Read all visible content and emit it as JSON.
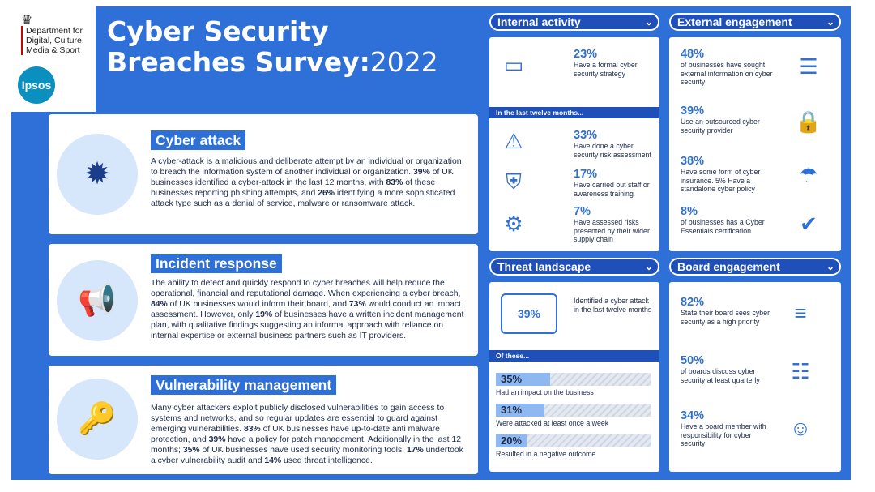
{
  "header": {
    "dept_lines": [
      "Department for",
      "Digital, Culture,",
      "Media & Sport"
    ],
    "ipsos": "Ipsos",
    "title_line1": "Cyber Security",
    "title_line2": "Breaches Survey:",
    "title_year": "2022"
  },
  "sections": [
    {
      "title": "Cyber attack",
      "icon": "bug-icon",
      "runs": [
        [
          "A cyber-attack is a malicious and deliberate attempt by an individual or organization to breach the information system of another individual or organization. ",
          0
        ],
        [
          "39%",
          1
        ],
        [
          " of UK businesses identified a cyber-attack in the last 12 months, with ",
          0
        ],
        [
          "83%",
          1
        ],
        [
          " of these businesses reporting phishing attempts, and ",
          0
        ],
        [
          "26%",
          1
        ],
        [
          " identifying a more sophisticated attack type such as a denial of service, malware or ransomware attack.",
          0
        ]
      ]
    },
    {
      "title": "Incident response",
      "icon": "megaphone-icon",
      "runs": [
        [
          "The ability to detect and quickly respond to cyber breaches will help reduce the operational, financial and reputational damage. When experiencing a cyber breach, ",
          0
        ],
        [
          "84%",
          1
        ],
        [
          " of UK businesses would inform their board, and ",
          0
        ],
        [
          "73%",
          1
        ],
        [
          " would conduct an impact assessment. However, only ",
          0
        ],
        [
          "19%",
          1
        ],
        [
          " of businesses have a written incident management plan, with qualitative findings suggesting an informal approach with reliance on internal expertise or external business partners such as IT providers.",
          0
        ]
      ]
    },
    {
      "title": "Vulnerability management",
      "icon": "key-icon",
      "runs": [
        [
          "Many cyber attackers exploit publicly disclosed vulnerabilities to gain access to systems and networks, and so regular updates are essential to guard against emerging vulnerabilities. ",
          0
        ],
        [
          "83%",
          1
        ],
        [
          " of UK businesses have up-to-date anti malware protection, and ",
          0
        ],
        [
          "39%",
          1
        ],
        [
          " have a policy for patch management. Additionally in the last 12 months; ",
          0
        ],
        [
          "35%",
          1
        ],
        [
          " of UK businesses have used security monitoring tools, ",
          0
        ],
        [
          "17%",
          1
        ],
        [
          " undertook a cyber vulnerability audit and ",
          0
        ],
        [
          "14%",
          1
        ],
        [
          " used threat intelligence.",
          0
        ]
      ]
    }
  ],
  "internal": {
    "title": "Internal activity",
    "first": {
      "pct": "23%",
      "label": "Have a formal cyber security strategy"
    },
    "band": "In the last twelve months...",
    "items": [
      {
        "pct": "33%",
        "label": "Have done a cyber security risk assessment"
      },
      {
        "pct": "17%",
        "label": "Have carried out staff or awareness training"
      },
      {
        "pct": "7%",
        "label": "Have assessed risks presented by their wider supply chain"
      }
    ]
  },
  "threat": {
    "title": "Threat landscape",
    "center": "39%",
    "label": "Identified a cyber attack in the last twelve months",
    "band": "Of these...",
    "bars": [
      {
        "value": "35%",
        "fraction": 0.35,
        "label": "Had an impact on the business"
      },
      {
        "value": "31%",
        "fraction": 0.31,
        "label": "Were attacked at least once a week"
      },
      {
        "value": "20%",
        "fraction": 0.2,
        "label": "Resulted in a negative outcome"
      }
    ]
  },
  "external": {
    "title": "External engagement",
    "items": [
      {
        "pct": "48%",
        "label": "of businesses have sought external information on cyber security"
      },
      {
        "pct": "39%",
        "label": "Use an outsourced cyber security provider"
      },
      {
        "pct": "38%",
        "label": "Have some form of cyber insurance. 5% Have a standalone cyber policy"
      },
      {
        "pct": "8%",
        "label": "of businesses has a Cyber Essentials certification"
      }
    ]
  },
  "board": {
    "title": "Board engagement",
    "items": [
      {
        "pct": "82%",
        "label": "State their board sees cyber security as a high priority"
      },
      {
        "pct": "50%",
        "label": "of boards discuss cyber security at least quarterly"
      },
      {
        "pct": "34%",
        "label": "Have a board member with responsibility for cyber security"
      }
    ]
  },
  "icons": {
    "chevron": "chevron-down-icon"
  },
  "colors": {
    "brand_blue": "#2e6fd8",
    "dark_blue": "#1f4fb8",
    "bar_fill": "#8fb8f0"
  }
}
